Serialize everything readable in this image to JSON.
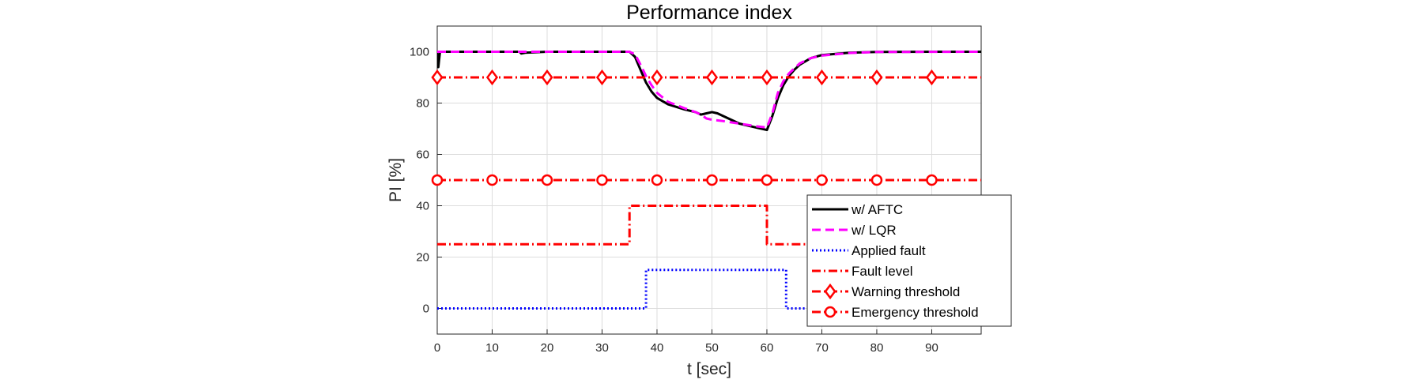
{
  "chart_data": {
    "type": "line",
    "title": "Performance index",
    "xlabel": "t [sec]",
    "ylabel": "PI [%]",
    "xlim": [
      0,
      99
    ],
    "ylim": [
      -10,
      110
    ],
    "xticks": [
      0,
      10,
      20,
      30,
      40,
      50,
      60,
      70,
      80,
      90
    ],
    "yticks": [
      0,
      20,
      40,
      60,
      80,
      100
    ],
    "grid": true,
    "legend_position": "bottom-right",
    "series": [
      {
        "name": "w/ AFTC",
        "color": "#000000",
        "style": "solid",
        "marker": "none",
        "points": [
          [
            0,
            100
          ],
          [
            0.2,
            94
          ],
          [
            0.5,
            100
          ],
          [
            15,
            100
          ],
          [
            15.3,
            99.3
          ],
          [
            16,
            99.6
          ],
          [
            20,
            100
          ],
          [
            35,
            100
          ],
          [
            36,
            98
          ],
          [
            37,
            93
          ],
          [
            38,
            88
          ],
          [
            39,
            84.5
          ],
          [
            40,
            82
          ],
          [
            42,
            79.5
          ],
          [
            45,
            77.5
          ],
          [
            47,
            76.5
          ],
          [
            48,
            75.5
          ],
          [
            49,
            76
          ],
          [
            50,
            76.5
          ],
          [
            51,
            76
          ],
          [
            53,
            74
          ],
          [
            55,
            72
          ],
          [
            58,
            70.5
          ],
          [
            60,
            69.5
          ],
          [
            61,
            75
          ],
          [
            62,
            82
          ],
          [
            63,
            87
          ],
          [
            64,
            90.5
          ],
          [
            65,
            93
          ],
          [
            66,
            95
          ],
          [
            68,
            97.5
          ],
          [
            70,
            98.7
          ],
          [
            75,
            99.6
          ],
          [
            80,
            99.9
          ],
          [
            90,
            100
          ],
          [
            99,
            100
          ]
        ]
      },
      {
        "name": "w/ LQR",
        "color": "#ff00ff",
        "style": "dashed",
        "marker": "none",
        "points": [
          [
            0,
            100
          ],
          [
            35,
            100
          ],
          [
            36,
            99
          ],
          [
            37,
            95
          ],
          [
            38,
            90.5
          ],
          [
            39,
            87
          ],
          [
            40,
            84
          ],
          [
            42,
            80.5
          ],
          [
            45,
            78
          ],
          [
            47,
            76.5
          ],
          [
            48,
            75.5
          ],
          [
            49,
            74
          ],
          [
            50,
            73.5
          ],
          [
            52,
            73
          ],
          [
            55,
            72
          ],
          [
            58,
            71
          ],
          [
            60,
            70.5
          ],
          [
            61,
            76
          ],
          [
            62,
            84
          ],
          [
            63,
            88.5
          ],
          [
            64,
            91.5
          ],
          [
            65,
            93.5
          ],
          [
            66,
            95.5
          ],
          [
            68,
            97.5
          ],
          [
            70,
            98.5
          ],
          [
            75,
            99.5
          ],
          [
            80,
            99.9
          ],
          [
            99,
            100
          ]
        ]
      },
      {
        "name": "Applied fault",
        "color": "#0000ff",
        "style": "dotted",
        "marker": "none",
        "points": [
          [
            0,
            0
          ],
          [
            38,
            0
          ],
          [
            38,
            15
          ],
          [
            63.5,
            15
          ],
          [
            63.5,
            0
          ],
          [
            99,
            0
          ]
        ]
      },
      {
        "name": "Fault level",
        "color": "#ff0000",
        "style": "dashdot",
        "marker": "none",
        "points": [
          [
            0,
            25
          ],
          [
            35,
            25
          ],
          [
            35,
            40
          ],
          [
            60,
            40
          ],
          [
            60,
            25
          ],
          [
            99,
            25
          ]
        ]
      },
      {
        "name": "Warning threshold",
        "color": "#ff0000",
        "style": "dashdot",
        "marker": "diamond",
        "points": [
          [
            0,
            90
          ],
          [
            99,
            90
          ]
        ],
        "marker_x": [
          0,
          10,
          20,
          30,
          40,
          50,
          60,
          70,
          80,
          90
        ]
      },
      {
        "name": "Emergency threshold",
        "color": "#ff0000",
        "style": "dashdot",
        "marker": "circle",
        "points": [
          [
            0,
            50
          ],
          [
            99,
            50
          ]
        ],
        "marker_x": [
          0,
          10,
          20,
          30,
          40,
          50,
          60,
          70,
          80,
          90
        ]
      }
    ]
  }
}
